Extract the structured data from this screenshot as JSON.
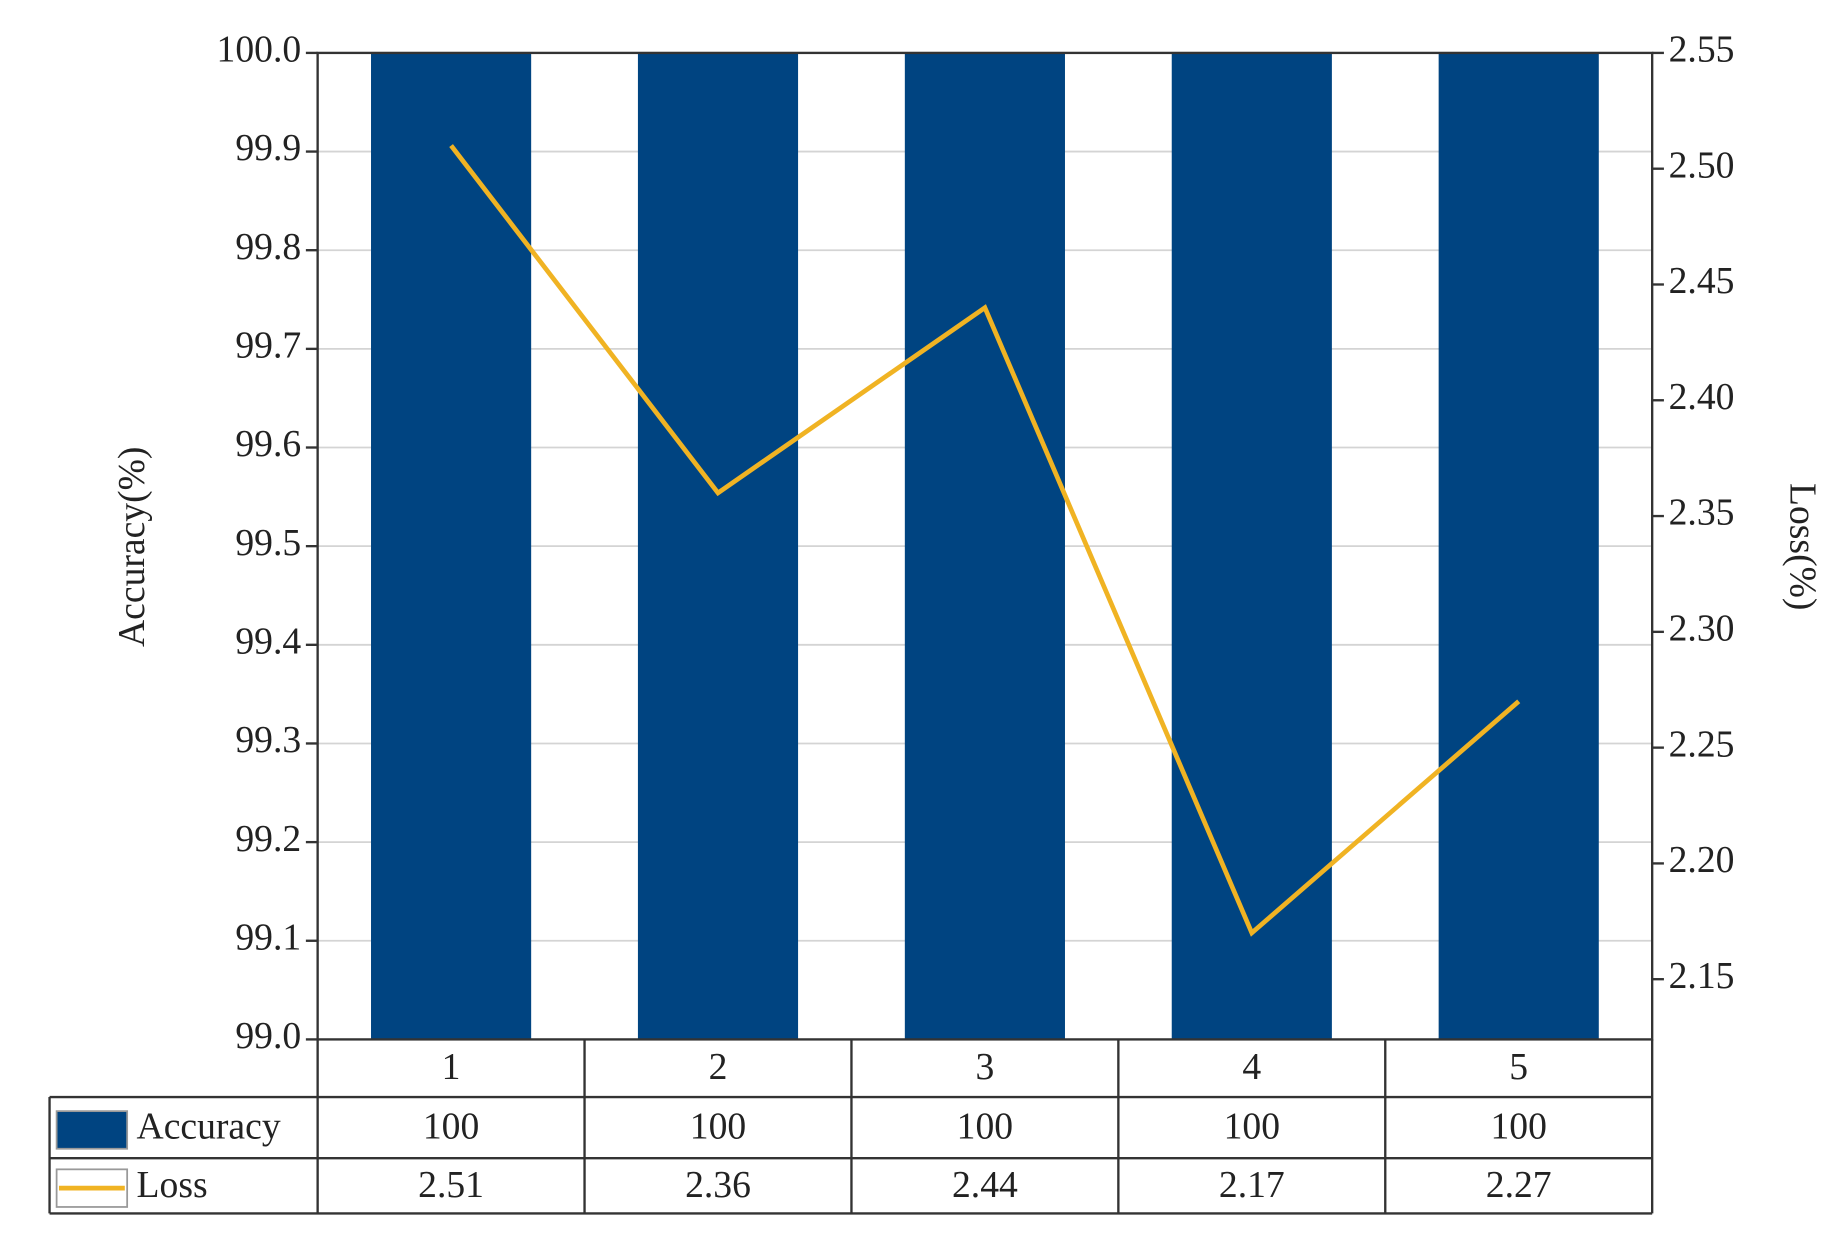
{
  "chart_data": {
    "type": "bar",
    "categories": [
      "1",
      "2",
      "3",
      "4",
      "5"
    ],
    "series": [
      {
        "name": "Accuracy",
        "color": "#004481",
        "values": [
          100,
          100,
          100,
          100,
          100
        ]
      },
      {
        "name": "Loss",
        "color": "#f0b323",
        "values": [
          2.51,
          2.36,
          2.44,
          2.17,
          2.27
        ],
        "axis": "y2",
        "type": "line"
      }
    ],
    "y_label": "Accuracy(%)",
    "y2_label": "Loss(%)",
    "ylim": [
      99.0,
      100.0
    ],
    "yticks": [
      {
        "value": 99.0,
        "label": "99.0"
      },
      99.1,
      99.2,
      99.3,
      99.4,
      99.5,
      99.6,
      99.7,
      99.8,
      99.9,
      {
        "value": 100.0,
        "label": "100.0"
      }
    ],
    "y2lim": [
      2.124,
      2.55
    ],
    "y2ticks": [
      2.15,
      {
        "value": 2.2,
        "label": "2.20"
      },
      2.25,
      {
        "value": 2.3,
        "label": "2.30"
      },
      2.35,
      {
        "value": 2.4,
        "label": "2.40"
      },
      2.45,
      {
        "value": 2.5,
        "label": "2.50"
      },
      2.55
    ],
    "grid": true,
    "data_table": true
  }
}
